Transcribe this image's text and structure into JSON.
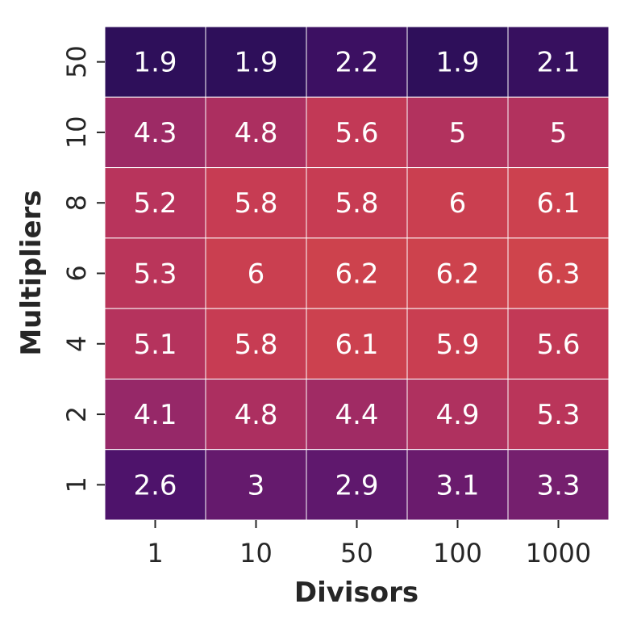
{
  "chart_data": {
    "type": "heatmap",
    "xlabel": "Divisors",
    "ylabel": "Multipliers",
    "x_categories": [
      "1",
      "10",
      "50",
      "100",
      "1000"
    ],
    "y_categories": [
      "50",
      "10",
      "8",
      "6",
      "4",
      "2",
      "1"
    ],
    "values": [
      [
        1.9,
        1.9,
        2.2,
        1.9,
        2.1
      ],
      [
        4.3,
        4.8,
        5.6,
        5,
        5
      ],
      [
        5.2,
        5.8,
        5.8,
        6,
        6.1
      ],
      [
        5.3,
        6,
        6.2,
        6.2,
        6.3
      ],
      [
        5.1,
        5.8,
        6.1,
        5.9,
        5.6
      ],
      [
        4.1,
        4.8,
        4.4,
        4.9,
        5.3
      ],
      [
        2.6,
        3,
        2.9,
        3.1,
        3.3
      ]
    ],
    "value_range": [
      1.9,
      6.3
    ],
    "colormap": "flare_r",
    "colorbar": false,
    "cell_border_color": "#ffffff",
    "annot_color": "#ffffff"
  }
}
